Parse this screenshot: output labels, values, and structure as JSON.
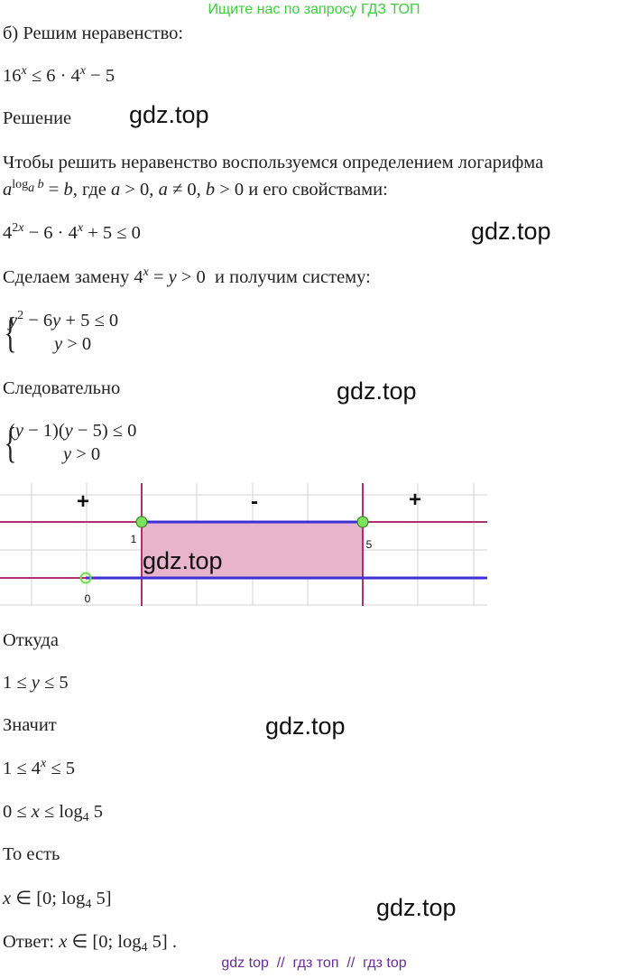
{
  "banner": "Ищите нас по запросу ГДЗ ТОП",
  "blocks": [
    "б) Решим неравенство:",
    [
      {
        "t": "16"
      },
      {
        "sup": "x"
      },
      {
        "t": " ≤ 6 · 4"
      },
      {
        "sup": "x"
      },
      {
        "t": " − 5"
      }
    ],
    "Решение",
    "Чтобы решить неравенство воспользуемся определением логарифма",
    [
      {
        "t": "a"
      },
      {
        "sup": [
          {
            "t": "log"
          },
          {
            "sub": "a"
          },
          {
            "t": " b"
          }
        ]
      },
      {
        "t": " = b, где a > 0, a ≠ 0, b > 0 и его свойствами:"
      }
    ],
    [
      {
        "t": "4"
      },
      {
        "sup": "2x"
      },
      {
        "t": " − 6 · 4"
      },
      {
        "sup": "x"
      },
      {
        "t": " + 5 ≤ 0"
      }
    ],
    [
      {
        "t": "Сделаем замену 4"
      },
      {
        "sup": "x"
      },
      {
        "t": " = y > 0  и получим систему:"
      }
    ],
    {
      "system": [
        [
          {
            "t": "y"
          },
          {
            "sup": "2"
          },
          {
            "t": " − 6y + 5 ≤ 0"
          }
        ],
        [
          {
            "t": "y > 0"
          }
        ]
      ]
    },
    "Следовательно",
    {
      "system": [
        [
          {
            "t": "(y − 1)(y − 5) ≤ 0"
          }
        ],
        [
          {
            "t": "y > 0"
          }
        ]
      ]
    },
    "Откуда",
    "1 ≤ y ≤ 5",
    "Значит",
    [
      {
        "t": "1 ≤ 4"
      },
      {
        "sup": "x"
      },
      {
        "t": " ≤ 5"
      }
    ],
    [
      {
        "t": "0 ≤ x ≤ log"
      },
      {
        "sub": "4"
      },
      {
        "t": " 5"
      }
    ],
    "То есть",
    [
      {
        "t": "x ∈ [0; log"
      },
      {
        "sub": "4"
      },
      {
        "t": " 5]"
      }
    ],
    [
      {
        "t": "Ответ: x ∈ [0; log"
      },
      {
        "sub": "4"
      },
      {
        "t": " 5] ."
      }
    ]
  ],
  "graph": {
    "signs": [
      "+",
      "-",
      "+"
    ],
    "points": [
      "1",
      "5",
      "0"
    ]
  },
  "watermarks": [
    "gdz.top",
    "gdz.top",
    "gdz.top",
    "gdz.top",
    "gdz.top",
    "gdz.top"
  ],
  "footer": "gdz top  //  гдз топ  //  гдз top"
}
